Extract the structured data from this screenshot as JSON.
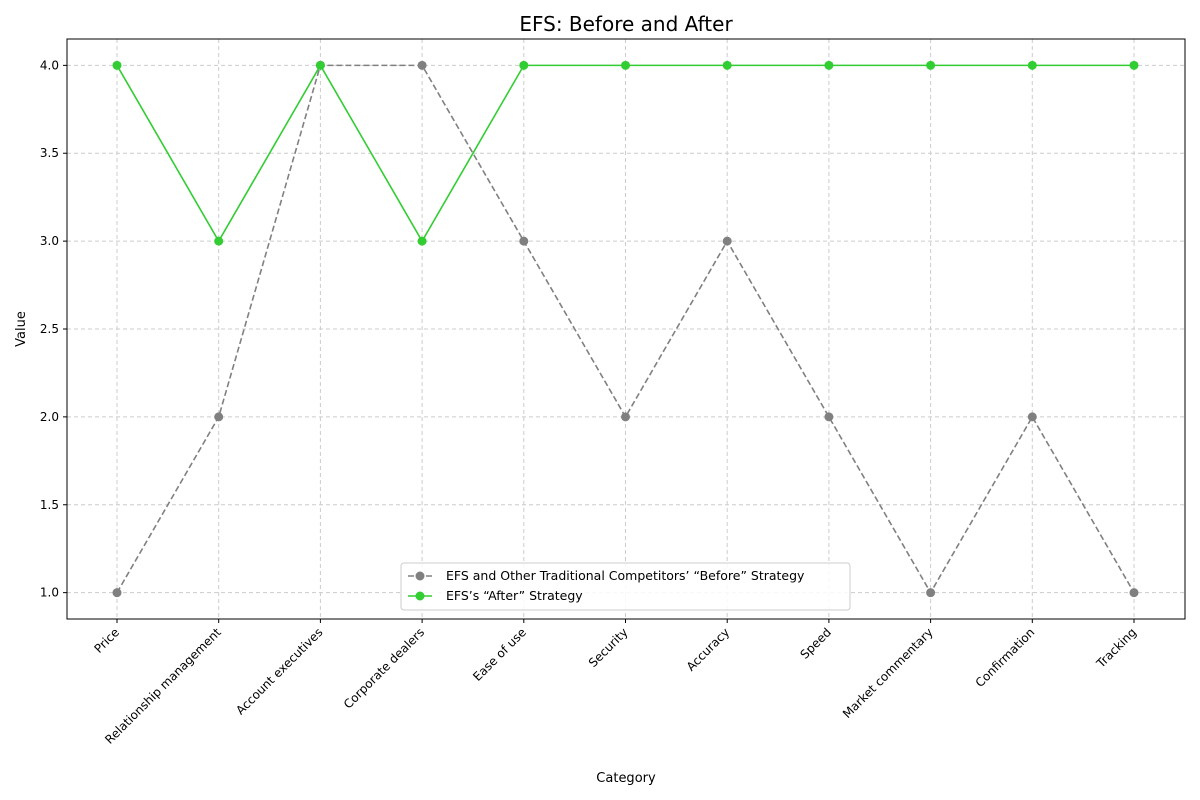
{
  "chart_data": {
    "type": "line",
    "title": "EFS: Before and After",
    "xlabel": "Category",
    "ylabel": "Value",
    "categories": [
      "Price",
      "Relationship management",
      "Account executives",
      "Corporate dealers",
      "Ease of use",
      "Security",
      "Accuracy",
      "Speed",
      "Market commentary",
      "Confirmation",
      "Tracking"
    ],
    "yticks": [
      "1.0",
      "1.5",
      "2.0",
      "2.5",
      "3.0",
      "3.5",
      "4.0"
    ],
    "ylim": [
      0.85,
      4.15
    ],
    "grid": true,
    "legend_position": "lower center",
    "series": [
      {
        "name": "EFS and Other Traditional Competitors’ “Before” Strategy",
        "values": [
          1,
          2,
          4,
          4,
          3,
          2,
          3,
          2,
          1,
          2,
          1
        ],
        "color": "#808080",
        "line_style": "dashed",
        "marker": "circle"
      },
      {
        "name": "EFS’s “After” Strategy",
        "values": [
          4,
          3,
          4,
          3,
          4,
          4,
          4,
          4,
          4,
          4,
          4
        ],
        "color": "#32cd32",
        "line_style": "solid",
        "marker": "circle"
      }
    ]
  }
}
